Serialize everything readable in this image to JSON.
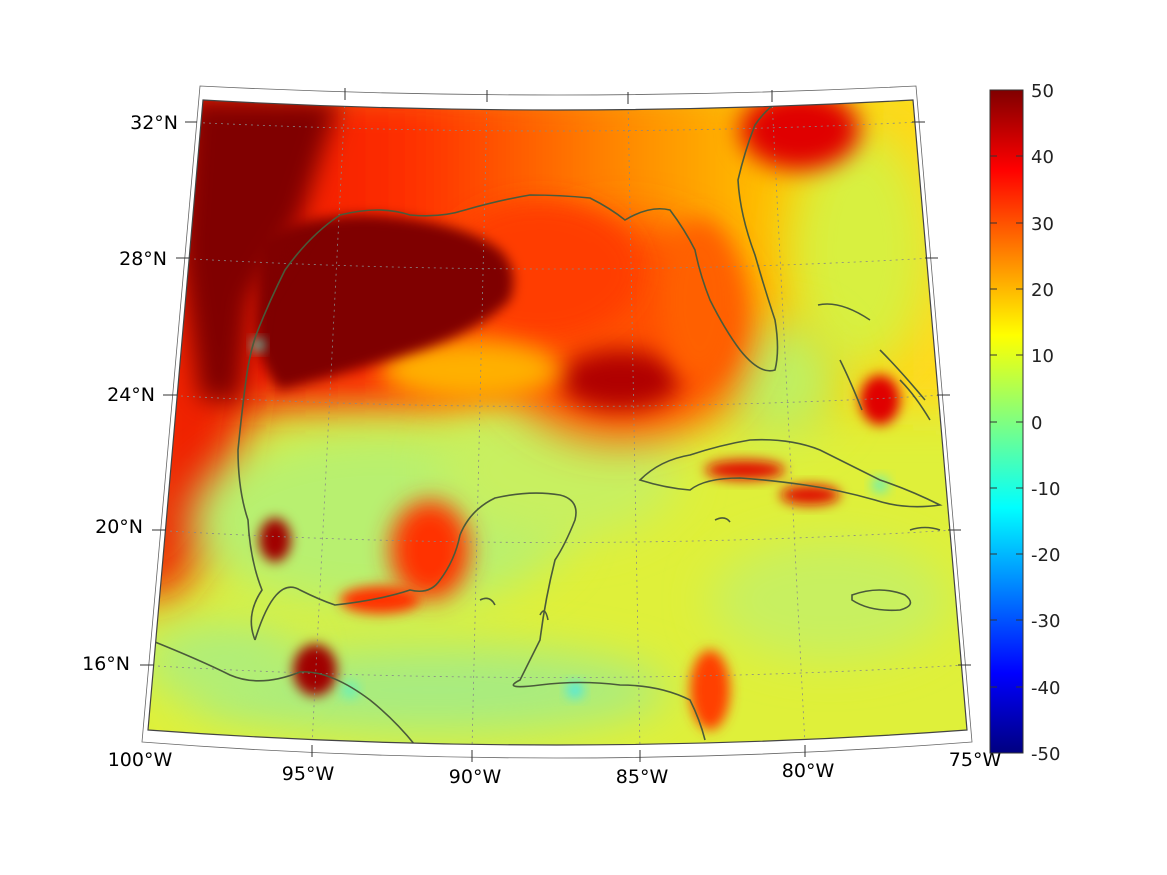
{
  "map": {
    "projection": "conic",
    "graticule": "dotted",
    "lat_labels": [
      "32°N",
      "28°N",
      "24°N",
      "20°N",
      "16°N"
    ],
    "lon_labels": [
      "100°W",
      "95°W",
      "90°W",
      "85°W",
      "80°W",
      "75°W"
    ],
    "colormap": "jet",
    "coastline_color": "#4a5a3a",
    "colorbar": {
      "min": -50,
      "max": 50,
      "tick_labels": [
        "50",
        "40",
        "30",
        "20",
        "10",
        "0",
        "-10",
        "-20",
        "-30",
        "-40",
        "-50"
      ]
    }
  }
}
